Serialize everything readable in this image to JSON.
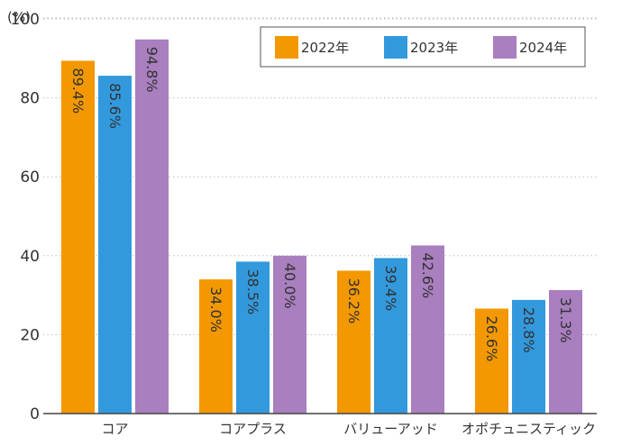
{
  "chart_data": {
    "type": "bar",
    "unit_label": "(%)",
    "categories": [
      "コア",
      "コアプラス",
      "バリューアッド",
      "オポチュニスティック"
    ],
    "series": [
      {
        "name": "2022年",
        "color": "#f39800",
        "values": [
          89.4,
          34.0,
          36.2,
          26.6
        ],
        "labels": [
          "89.4%",
          "34.0%",
          "36.2%",
          "26.6%"
        ]
      },
      {
        "name": "2023年",
        "color": "#3399dd",
        "values": [
          85.6,
          38.5,
          39.4,
          28.8
        ],
        "labels": [
          "85.6%",
          "38.5%",
          "39.4%",
          "28.8%"
        ]
      },
      {
        "name": "2024年",
        "color": "#a97fbf",
        "values": [
          94.8,
          40.0,
          42.6,
          31.3
        ],
        "labels": [
          "94.8%",
          "40.0%",
          "42.6%",
          "31.3%"
        ]
      }
    ],
    "ylim": [
      0,
      100
    ],
    "yticks": [
      0,
      20,
      40,
      60,
      80,
      100
    ],
    "ytick_labels": [
      "0",
      "20",
      "40",
      "60",
      "80",
      "100"
    ],
    "grid": true,
    "legend_position": "top-right"
  }
}
